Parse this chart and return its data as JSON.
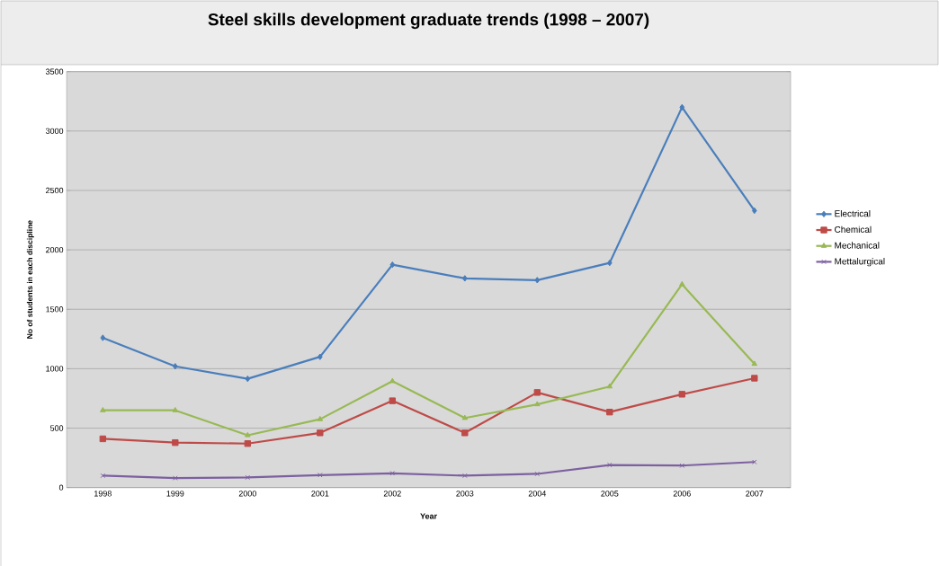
{
  "chart_data": {
    "type": "line",
    "title": "Steel skills development graduate trends (1998 – 2007)",
    "xlabel": "Year",
    "ylabel": "No of students in each discipline",
    "categories": [
      "1998",
      "1999",
      "2000",
      "2001",
      "2002",
      "2003",
      "2004",
      "2005",
      "2006",
      "2007"
    ],
    "series": [
      {
        "name": "Electrical",
        "color": "#4a7ebb",
        "marker": "diamond",
        "values": [
          1260,
          1020,
          915,
          1100,
          1875,
          1760,
          1745,
          1890,
          3200,
          2330
        ]
      },
      {
        "name": "Chemical",
        "color": "#be4b48",
        "marker": "square",
        "values": [
          410,
          378,
          370,
          460,
          730,
          460,
          800,
          635,
          785,
          920
        ]
      },
      {
        "name": "Mechanical",
        "color": "#98b954",
        "marker": "triangle",
        "values": [
          650,
          650,
          440,
          575,
          895,
          585,
          700,
          850,
          1710,
          1040
        ]
      },
      {
        "name": "Mettalurgical",
        "color": "#7d60a0",
        "marker": "cross",
        "values": [
          100,
          80,
          85,
          105,
          120,
          100,
          115,
          190,
          185,
          215
        ]
      }
    ],
    "ylim": [
      0,
      3500
    ],
    "yticks": [
      0,
      500,
      1000,
      1500,
      2000,
      2500,
      3000,
      3500
    ],
    "grid": "y",
    "legend": "right",
    "line_style": "solid"
  }
}
